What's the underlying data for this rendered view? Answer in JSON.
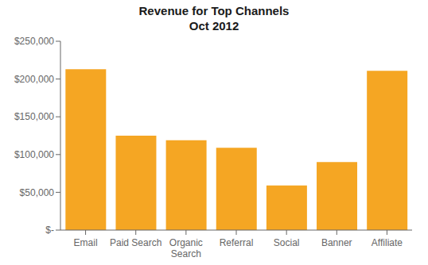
{
  "chart_data": {
    "type": "bar",
    "title": "Revenue for Top Channels\nOct 2012",
    "categories": [
      "Email",
      "Paid Search",
      "Organic\nSearch",
      "Referral",
      "Social",
      "Banner",
      "Affiliate"
    ],
    "values": [
      213000,
      125000,
      119000,
      109000,
      59000,
      90000,
      211000
    ],
    "color": "#F5A623",
    "ylim": [
      0,
      250000
    ],
    "yticks": [
      {
        "value": 0,
        "label": "$-"
      },
      {
        "value": 50000,
        "label": "$50,000"
      },
      {
        "value": 100000,
        "label": "$100,000"
      },
      {
        "value": 150000,
        "label": "$150,000"
      },
      {
        "value": 200000,
        "label": "$200,000"
      },
      {
        "value": 250000,
        "label": "$250,000"
      }
    ],
    "grid": false
  }
}
